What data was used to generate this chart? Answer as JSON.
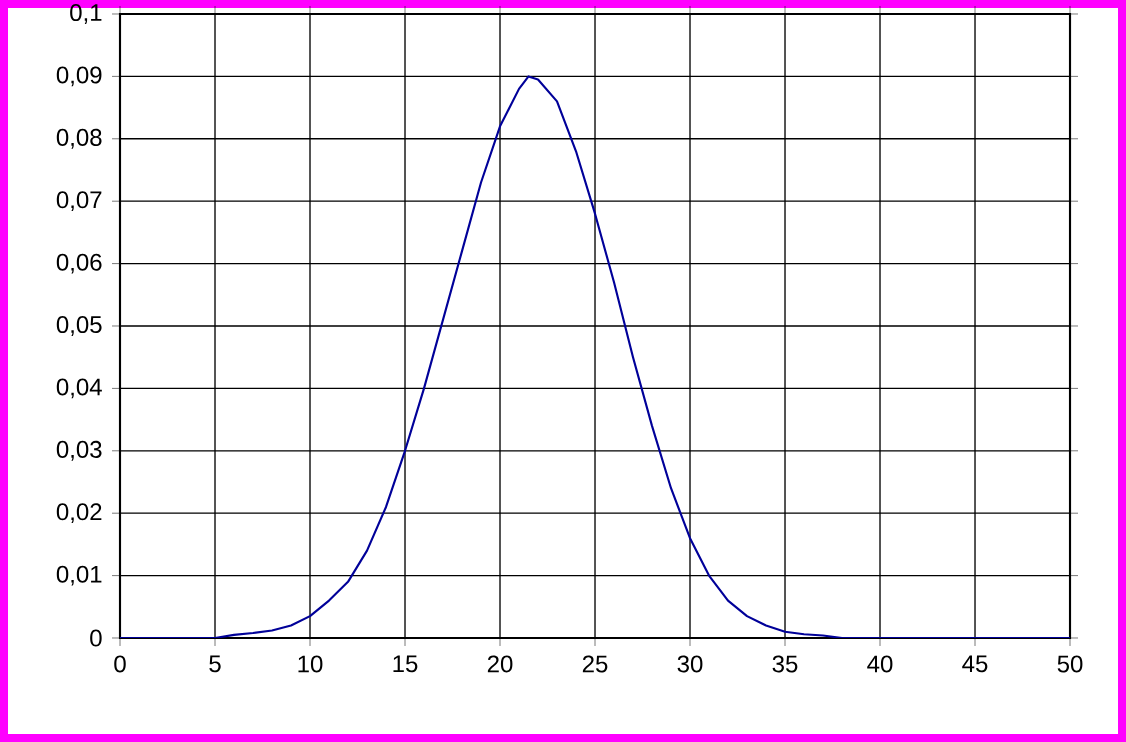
{
  "chart_data": {
    "type": "line",
    "x": [
      0,
      1,
      2,
      3,
      4,
      5,
      6,
      7,
      8,
      9,
      10,
      11,
      12,
      13,
      14,
      15,
      16,
      17,
      18,
      19,
      20,
      21,
      21.5,
      22,
      23,
      24,
      25,
      26,
      27,
      28,
      29,
      30,
      31,
      32,
      33,
      34,
      35,
      36,
      37,
      38,
      39,
      40,
      41,
      42,
      43,
      44,
      45,
      46,
      47,
      48,
      49,
      50
    ],
    "series": [
      {
        "color": "#000099",
        "values": [
          0,
          0,
          0,
          0,
          0,
          0,
          0.0005,
          0.0008,
          0.0012,
          0.002,
          0.0035,
          0.006,
          0.009,
          0.014,
          0.021,
          0.03,
          0.04,
          0.051,
          0.062,
          0.073,
          0.082,
          0.088,
          0.09,
          0.0895,
          0.086,
          0.078,
          0.068,
          0.057,
          0.045,
          0.034,
          0.024,
          0.016,
          0.01,
          0.006,
          0.0035,
          0.002,
          0.001,
          0.0006,
          0.0004,
          0,
          0,
          0,
          0,
          0,
          0,
          0,
          0,
          0,
          0,
          0,
          0,
          0
        ]
      }
    ],
    "xlim": [
      0,
      50
    ],
    "xticks": [
      0,
      5,
      10,
      15,
      20,
      25,
      30,
      35,
      40,
      45,
      50
    ],
    "ylim": [
      0,
      0.1
    ],
    "yticks": [
      0,
      {
        "value": 0.01,
        "label": "0,01"
      },
      {
        "value": 0.02,
        "label": "0,02"
      },
      {
        "value": 0.03,
        "label": "0,03"
      },
      {
        "value": 0.04,
        "label": "0,04"
      },
      {
        "value": 0.05,
        "label": "0,05"
      },
      {
        "value": 0.06,
        "label": "0,06"
      },
      {
        "value": 0.07,
        "label": "0,07"
      },
      {
        "value": 0.08,
        "label": "0,08"
      },
      {
        "value": 0.09,
        "label": "0,09"
      },
      {
        "value": 0.1,
        "label": "0,1"
      }
    ],
    "grid": true,
    "marker": "none",
    "line_style": "solid"
  }
}
